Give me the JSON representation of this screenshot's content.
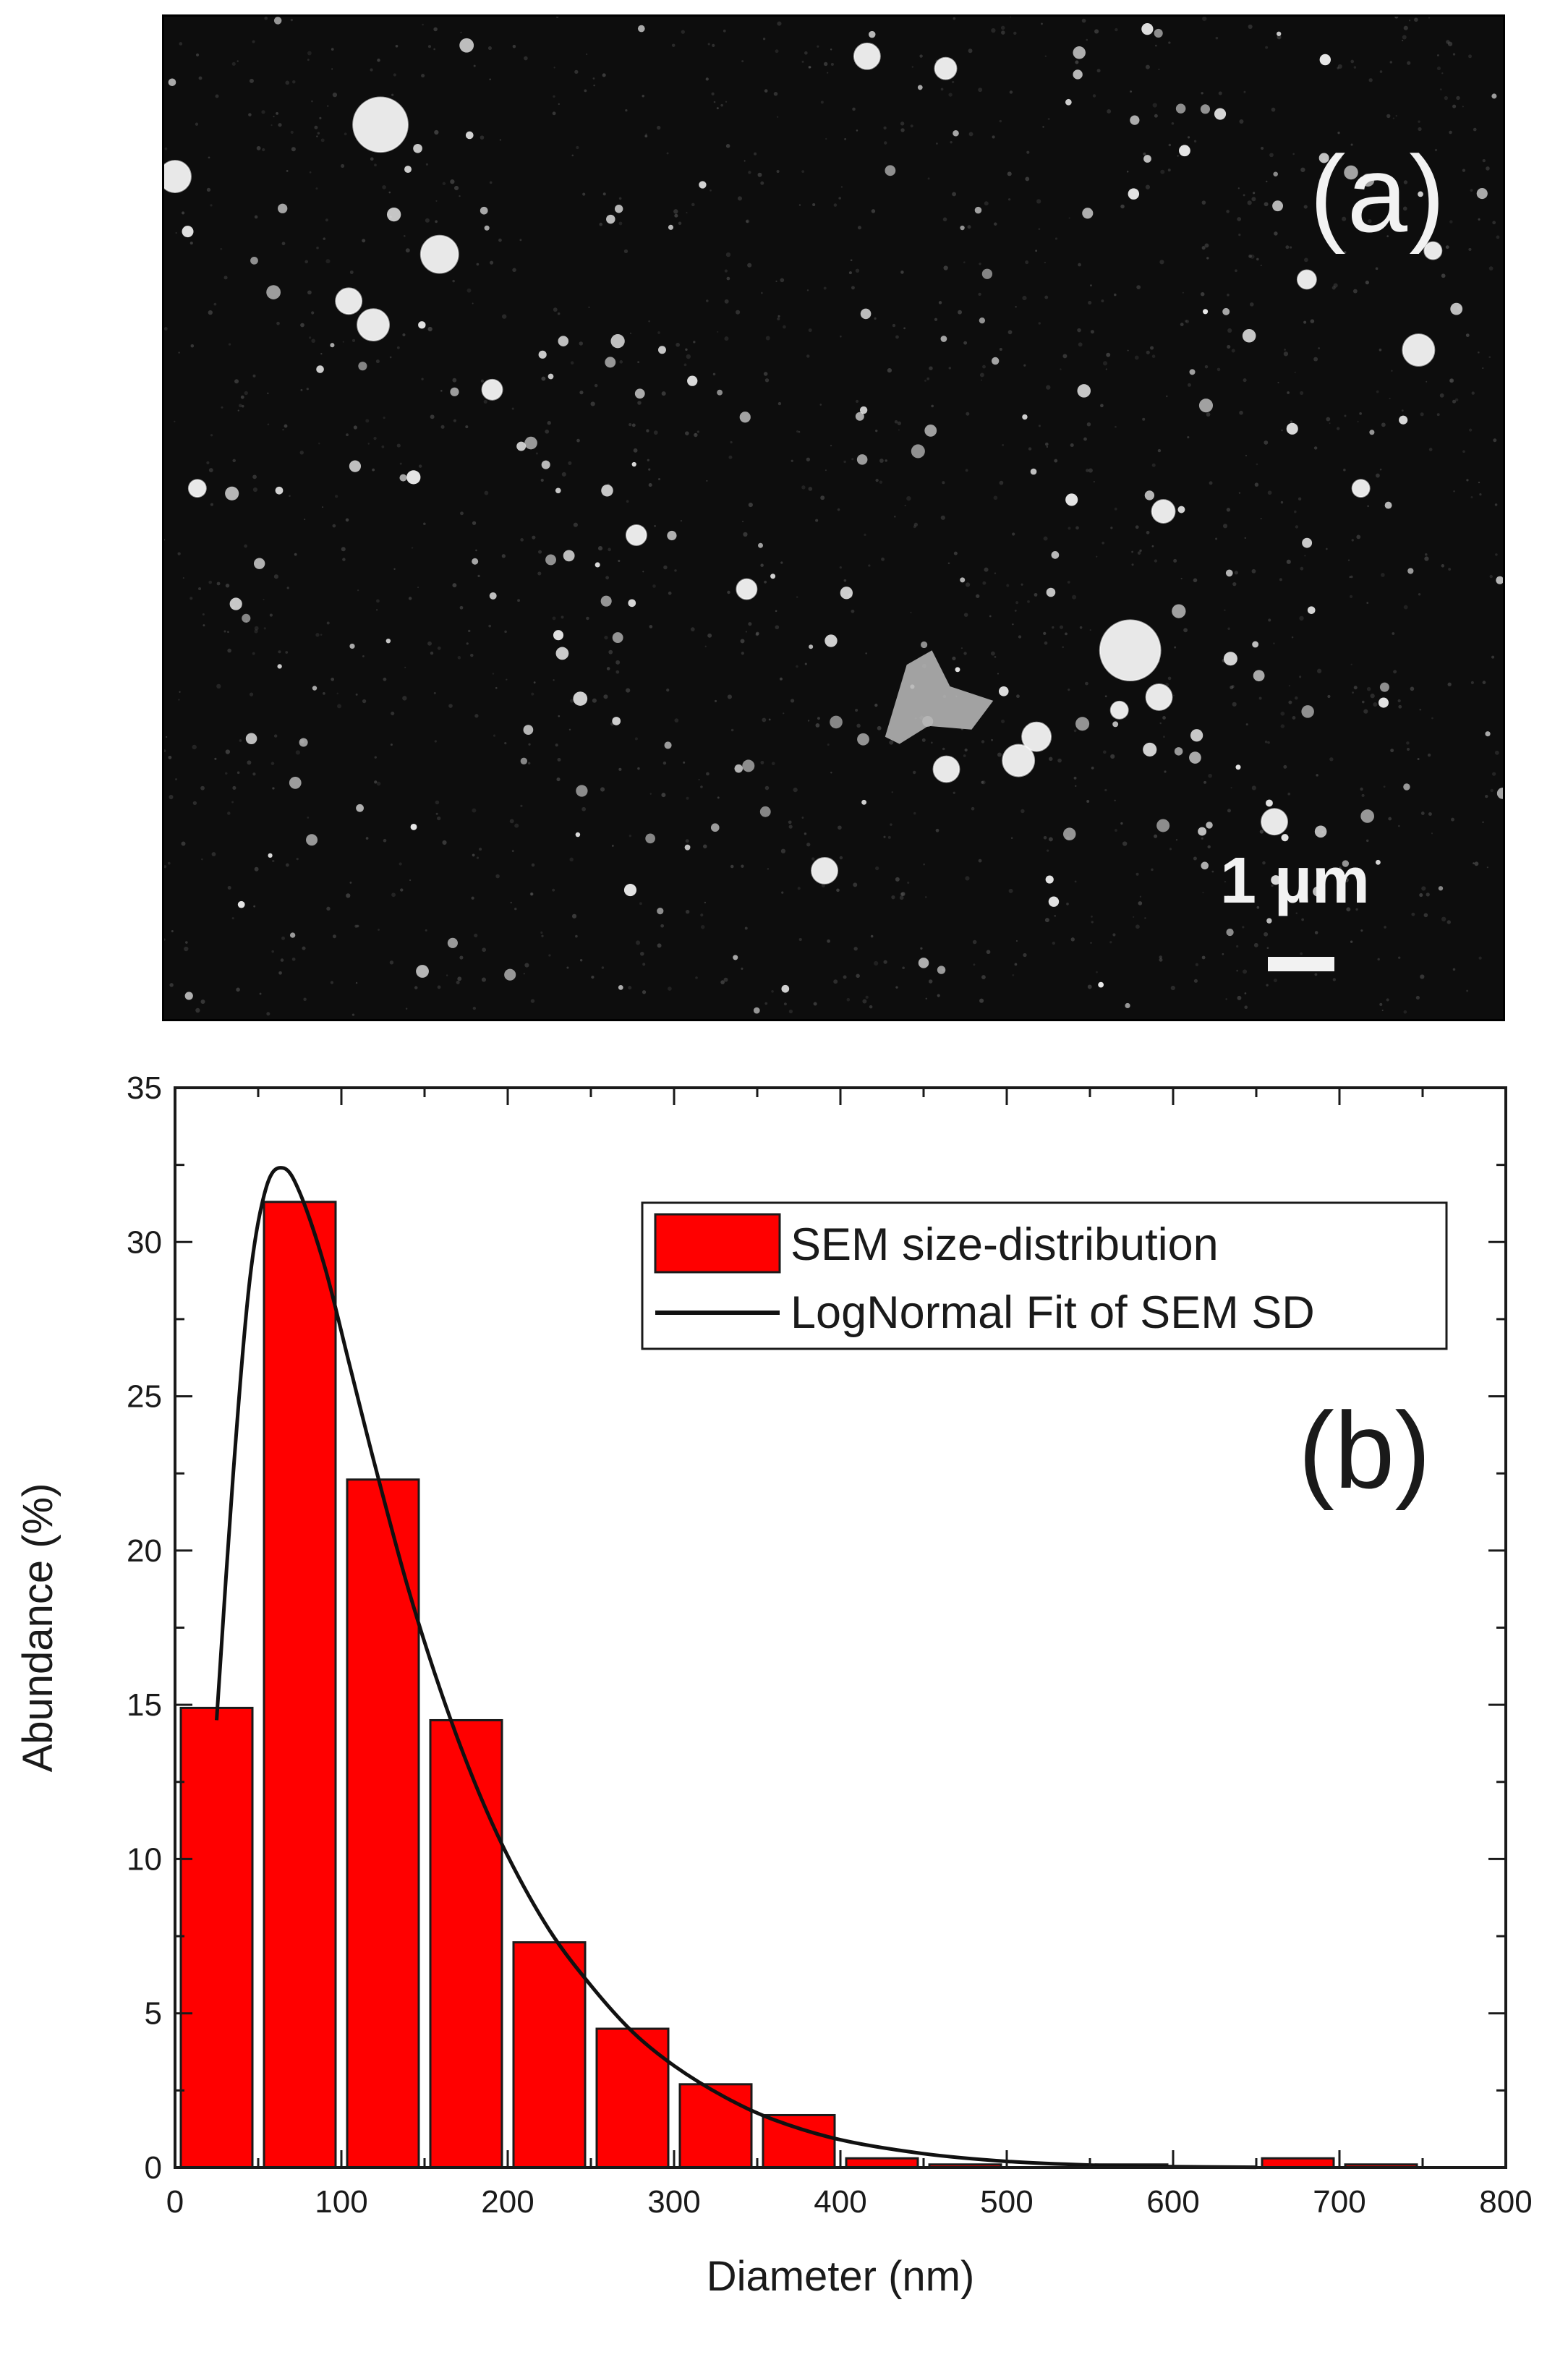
{
  "panel_a": {
    "label": "(a)",
    "scale_bar_label": "1 µm",
    "background_color": "#0d0d0d",
    "particle_color": "#e8e8e8"
  },
  "chart_data": {
    "type": "bar",
    "panel_label": "(b)",
    "xlabel": "Diameter (nm)",
    "ylabel": "Abundance (%)",
    "xlim": [
      0,
      800
    ],
    "ylim": [
      0,
      35
    ],
    "xticks": [
      "0",
      "100",
      "200",
      "300",
      "400",
      "500",
      "600",
      "700",
      "800"
    ],
    "yticks": [
      "0",
      "5",
      "10",
      "15",
      "20",
      "25",
      "30",
      "35"
    ],
    "bin_width": 50,
    "bars": [
      {
        "x": 25,
        "value": 14.9
      },
      {
        "x": 75,
        "value": 31.3
      },
      {
        "x": 125,
        "value": 22.3
      },
      {
        "x": 175,
        "value": 14.5
      },
      {
        "x": 225,
        "value": 7.3
      },
      {
        "x": 275,
        "value": 4.5
      },
      {
        "x": 325,
        "value": 2.7
      },
      {
        "x": 375,
        "value": 1.7
      },
      {
        "x": 425,
        "value": 0.3
      },
      {
        "x": 475,
        "value": 0.1
      },
      {
        "x": 525,
        "value": 0
      },
      {
        "x": 575,
        "value": 0.1
      },
      {
        "x": 625,
        "value": 0
      },
      {
        "x": 675,
        "value": 0.3
      },
      {
        "x": 725,
        "value": 0.1
      }
    ],
    "fit_curve": {
      "x": [
        25,
        35,
        45,
        55,
        65,
        75,
        90,
        105,
        120,
        140,
        160,
        180,
        200,
        225,
        250,
        275,
        300,
        330,
        360,
        400,
        450,
        500,
        550,
        600,
        650
      ],
      "y": [
        14.5,
        22.5,
        28.8,
        31.8,
        32.4,
        31.6,
        29.2,
        26.0,
        22.8,
        18.8,
        15.4,
        12.5,
        10.1,
        7.7,
        5.9,
        4.4,
        3.3,
        2.3,
        1.55,
        0.9,
        0.45,
        0.2,
        0.08,
        0.03,
        0.01
      ]
    },
    "legend": {
      "position": "top-right",
      "entries": [
        {
          "label": "SEM size-distribution",
          "kind": "bar"
        },
        {
          "label": "LogNormal Fit of SEM SD",
          "kind": "line"
        }
      ]
    },
    "colors": {
      "bar_fill": "#ff0000",
      "bar_stroke": "#1a1a1a",
      "line": "#111111"
    }
  }
}
